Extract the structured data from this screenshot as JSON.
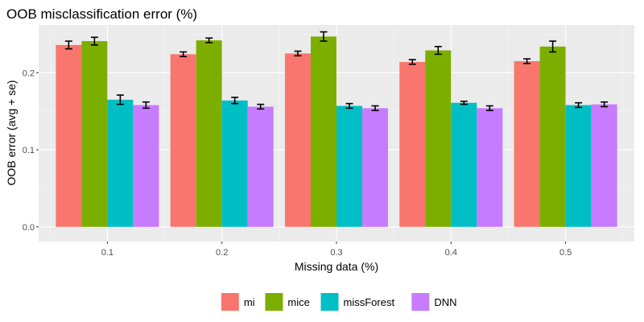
{
  "chart_data": {
    "type": "bar",
    "title": "OOB misclassification error (%)",
    "xlabel": "Missing data (%)",
    "ylabel": "OOB error (avg + se)",
    "categories": [
      "0.1",
      "0.2",
      "0.3",
      "0.4",
      "0.5"
    ],
    "ylim": [
      -0.019,
      0.262
    ],
    "yticks": [
      "0.0",
      "0.1",
      "0.2"
    ],
    "error_bars": "avg ± se",
    "legend_position": "bottom",
    "series": [
      {
        "name": "mi",
        "color": "#F8766D",
        "values": [
          0.236,
          0.224,
          0.225,
          0.214,
          0.215
        ],
        "se": [
          0.005,
          0.003,
          0.003,
          0.003,
          0.003
        ]
      },
      {
        "name": "mice",
        "color": "#7CAE00",
        "values": [
          0.241,
          0.242,
          0.247,
          0.229,
          0.234
        ],
        "se": [
          0.005,
          0.003,
          0.006,
          0.005,
          0.007
        ]
      },
      {
        "name": "missForest",
        "color": "#00BFC4",
        "values": [
          0.165,
          0.164,
          0.157,
          0.161,
          0.158
        ],
        "se": [
          0.006,
          0.004,
          0.003,
          0.002,
          0.003
        ]
      },
      {
        "name": "DNN",
        "color": "#C77CFF",
        "values": [
          0.158,
          0.156,
          0.154,
          0.154,
          0.159
        ],
        "se": [
          0.004,
          0.003,
          0.003,
          0.003,
          0.003
        ]
      }
    ]
  }
}
